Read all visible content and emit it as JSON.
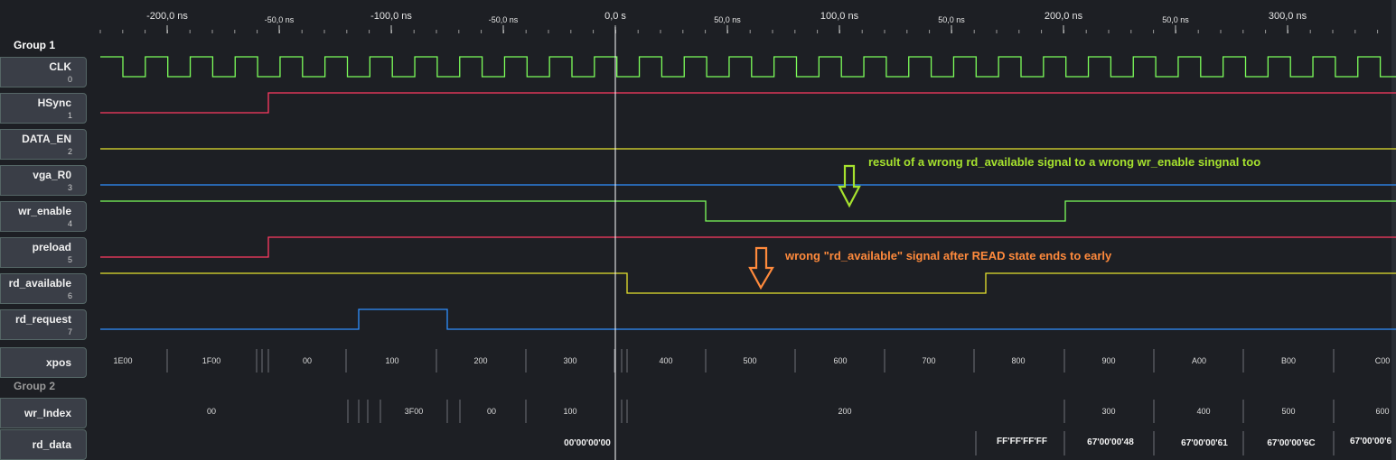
{
  "groups": {
    "g1": "Group 1",
    "g2": "Group 2"
  },
  "ruler": {
    "major": [
      "-200,0 ns",
      "-100,0 ns",
      "0,0 s",
      "100,0 ns",
      "200,0 ns",
      "300,0 ns"
    ],
    "minor": [
      "-50,0 ns",
      "-50,0 ns",
      "50,0 ns",
      "50,0 ns",
      "50,0 ns"
    ]
  },
  "signals": [
    {
      "name": "CLK",
      "index": "0",
      "color": "#7dff5a"
    },
    {
      "name": "HSync",
      "index": "1",
      "color": "#ff3b62"
    },
    {
      "name": "DATA_EN",
      "index": "2",
      "color": "#e6e22e"
    },
    {
      "name": "vga_R0",
      "index": "3",
      "color": "#2f8fff"
    },
    {
      "name": "wr_enable",
      "index": "4",
      "color": "#7dff5a"
    },
    {
      "name": "preload",
      "index": "5",
      "color": "#ff3b62"
    },
    {
      "name": "rd_available",
      "index": "6",
      "color": "#e6e22e"
    },
    {
      "name": "rd_request",
      "index": "7",
      "color": "#2f8fff"
    }
  ],
  "buses": {
    "xpos": {
      "name": "xpos",
      "values": [
        "1E00",
        "1F00",
        "00",
        "100",
        "200",
        "300",
        "400",
        "500",
        "600",
        "700",
        "800",
        "900",
        "A00",
        "B00",
        "C00"
      ]
    },
    "wr_index": {
      "name": "wr_Index",
      "values": [
        "00",
        "3F00",
        "00",
        "100",
        "200",
        "300",
        "400",
        "500",
        "600"
      ]
    },
    "rd_data": {
      "name": "rd_data",
      "values": [
        "00'00'00'00",
        "FF'FF'FF'FF",
        "67'00'00'48",
        "67'00'00'61",
        "67'00'00'6C",
        "67'00'00'6"
      ]
    }
  },
  "annotations": {
    "a1": {
      "text": "result of a wrong rd_available signal to a wrong wr_enable singnal too",
      "color": "#a6e22e"
    },
    "a2": {
      "text": "wrong \"rd_available\" signal after READ state ends to early",
      "color": "#ff8a3c"
    }
  }
}
